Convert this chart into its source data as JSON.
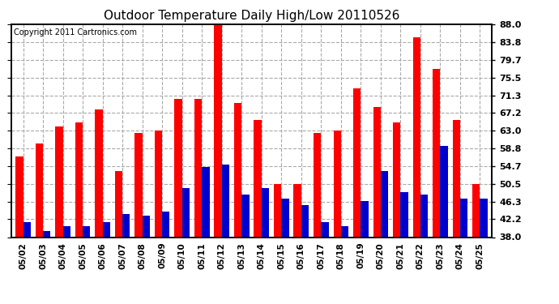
{
  "title": "Outdoor Temperature Daily High/Low 20110526",
  "copyright": "Copyright 2011 Cartronics.com",
  "dates": [
    "05/02",
    "05/03",
    "05/04",
    "05/05",
    "05/06",
    "05/07",
    "05/08",
    "05/09",
    "05/10",
    "05/11",
    "05/12",
    "05/13",
    "05/14",
    "05/15",
    "05/16",
    "05/17",
    "05/18",
    "05/19",
    "05/20",
    "05/21",
    "05/22",
    "05/23",
    "05/24",
    "05/25"
  ],
  "highs": [
    57.0,
    60.0,
    64.0,
    65.0,
    68.0,
    53.5,
    62.5,
    63.0,
    70.5,
    70.5,
    88.0,
    69.5,
    65.5,
    50.5,
    50.5,
    62.5,
    63.0,
    73.0,
    68.5,
    65.0,
    85.0,
    77.5,
    65.5,
    50.5
  ],
  "lows": [
    41.5,
    39.5,
    40.5,
    40.5,
    41.5,
    43.5,
    43.0,
    44.0,
    49.5,
    54.5,
    55.0,
    48.0,
    49.5,
    47.0,
    45.5,
    41.5,
    40.5,
    46.5,
    53.5,
    48.5,
    48.0,
    59.5,
    47.0,
    47.0
  ],
  "high_color": "#ff0000",
  "low_color": "#0000cc",
  "bg_color": "#ffffff",
  "plot_bg_color": "#ffffff",
  "grid_color": "#aaaaaa",
  "yticks": [
    38.0,
    42.2,
    46.3,
    50.5,
    54.7,
    58.8,
    63.0,
    67.2,
    71.3,
    75.5,
    79.7,
    83.8,
    88.0
  ],
  "ymin": 38.0,
  "ymax": 88.0,
  "bar_width": 0.38
}
